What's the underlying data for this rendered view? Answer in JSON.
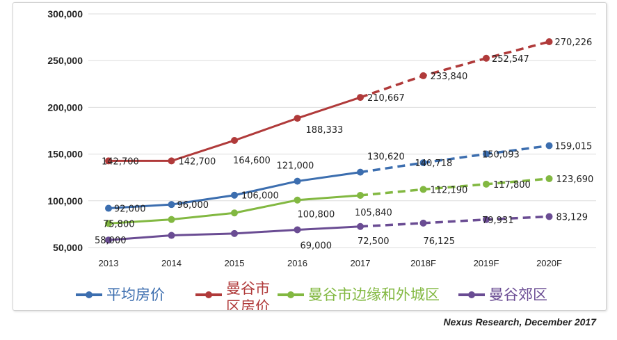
{
  "chart_data": {
    "type": "line",
    "categories": [
      "2013",
      "2014",
      "2015",
      "2016",
      "2017",
      "2018F",
      "2019F",
      "2020F"
    ],
    "forecast_start_index": 4,
    "ylim": [
      50000,
      300000
    ],
    "yticks": [
      50000,
      100000,
      150000,
      200000,
      250000,
      300000
    ],
    "ytick_labels": [
      "50,000",
      "100,000",
      "150,000",
      "200,000",
      "250,000",
      "300,000"
    ],
    "grid": true,
    "legend_position": "bottom",
    "series": [
      {
        "name": "平均房价",
        "color": "#3c6eaf",
        "values": [
          92000,
          96000,
          106000,
          121000,
          130620,
          140718,
          150093,
          159015
        ],
        "labels": [
          "92,000",
          "96,000",
          "106,000",
          "121,000",
          "130,620",
          "140,718",
          "150,093",
          "159,015"
        ]
      },
      {
        "name": "曼谷市区房价",
        "color": "#b03a3a",
        "values": [
          142700,
          142700,
          164600,
          188333,
          210667,
          233840,
          252547,
          270226
        ],
        "labels": [
          "142,700",
          "142,700",
          "164,600",
          "188,333",
          "210,667",
          "233,840",
          "252,547",
          "270,226"
        ]
      },
      {
        "name": "曼谷市边缘和外城区",
        "color": "#82b841",
        "values": [
          75800,
          80000,
          87000,
          100800,
          105840,
          112190,
          117800,
          123690
        ],
        "labels": [
          "75,800",
          "",
          "",
          "100,800",
          "105,840",
          "112,190",
          "117,800",
          "123,690"
        ]
      },
      {
        "name": "曼谷郊区",
        "color": "#6a4c93",
        "values": [
          58000,
          63000,
          65000,
          69000,
          72500,
          76125,
          79931,
          83129
        ],
        "labels": [
          "58,000",
          "",
          "",
          "69,000",
          "72,500",
          "76,125",
          "79,931",
          "83,129"
        ]
      }
    ],
    "legend": [
      {
        "line1": "平均房价",
        "line2": ""
      },
      {
        "line1": "曼谷市",
        "line2": "区房价"
      },
      {
        "line1": "曼谷市边缘和外城区",
        "line2": ""
      },
      {
        "line1": "曼谷郊区",
        "line2": ""
      }
    ]
  },
  "source": "Nexus Research, December 2017"
}
